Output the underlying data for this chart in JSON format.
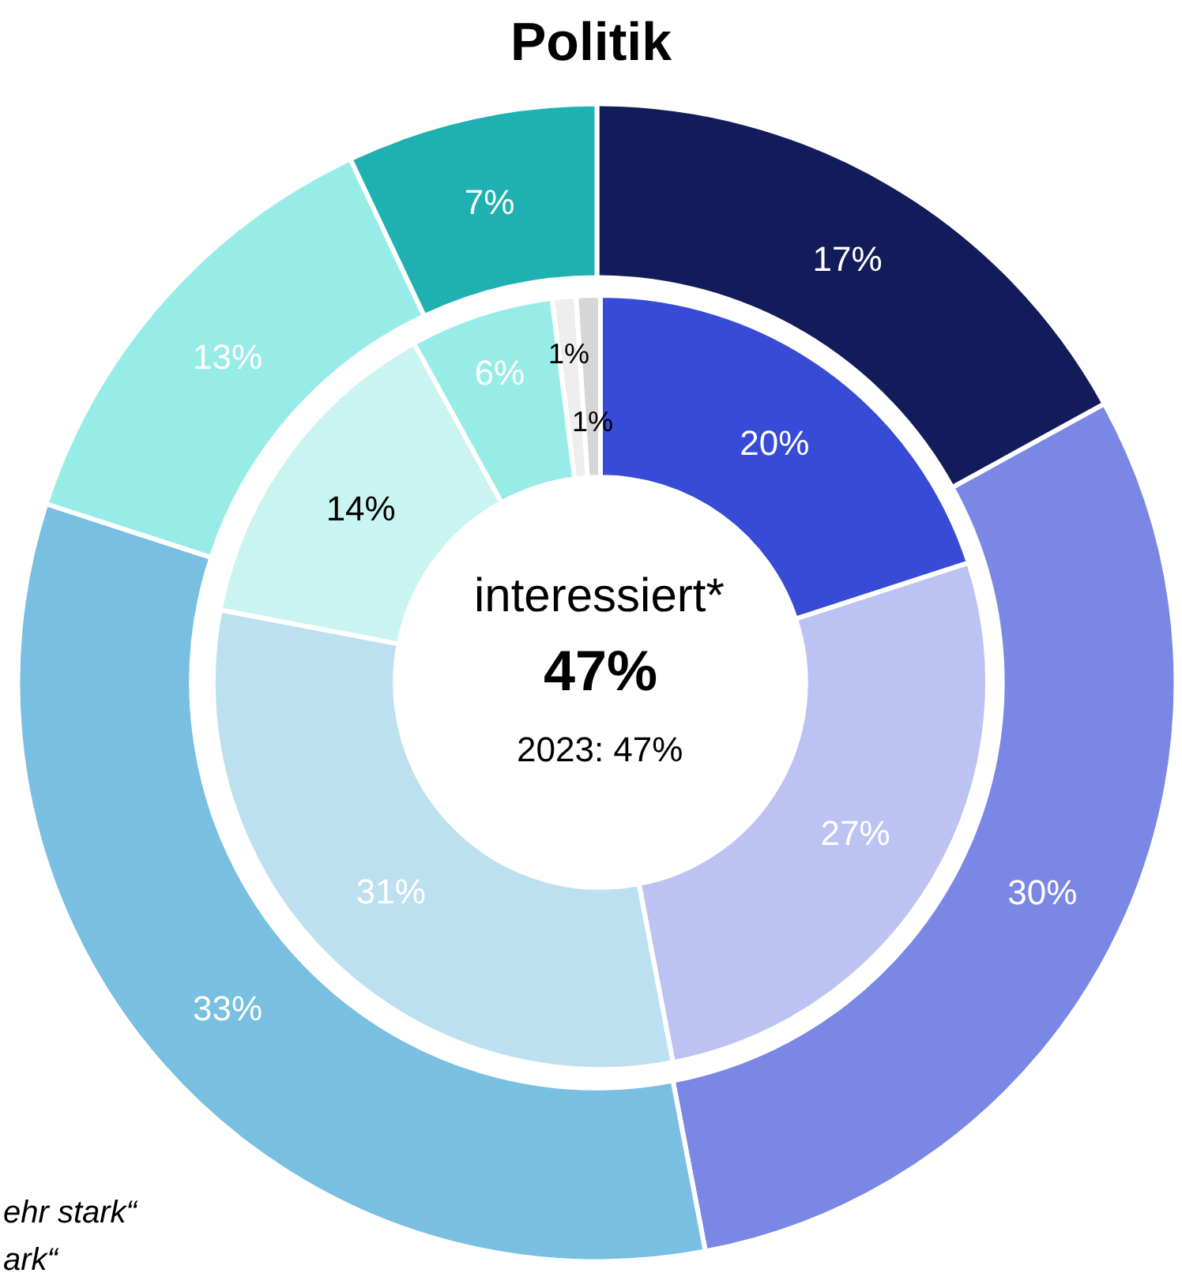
{
  "chart_data": {
    "type": "donut",
    "title": "Politik",
    "annotations": [
      "interessiert*",
      "47%",
      "2023: 47%",
      "ehr stark“",
      "ark“"
    ],
    "series": [
      {
        "values": [
          17,
          30,
          33,
          13,
          7
        ],
        "colors": [
          "#131c5a",
          "#7b87e4",
          "#78bfe1",
          "#98ece8",
          "#1fb1b1"
        ],
        "value_labels": [
          "17%",
          "30%",
          "33%",
          "13%",
          "7%"
        ]
      },
      {
        "values": [
          20,
          27,
          31,
          14,
          6,
          1,
          1
        ],
        "colors": [
          "#374bd6",
          "#bcc3f3",
          "#bde0f1",
          "#c9f4f2",
          "#98ece8",
          "#eeeeee",
          "#d6d6d6"
        ],
        "value_labels": [
          "20%",
          "27%",
          "31%",
          "14%",
          "6%",
          "1%",
          "1%"
        ]
      }
    ]
  }
}
